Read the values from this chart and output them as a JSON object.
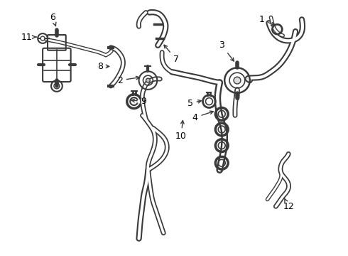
{
  "title": "",
  "background_color": "#ffffff",
  "line_color": "#3a3a3a",
  "label_color": "#000000",
  "fig_width": 4.9,
  "fig_height": 3.6,
  "dpi": 100
}
